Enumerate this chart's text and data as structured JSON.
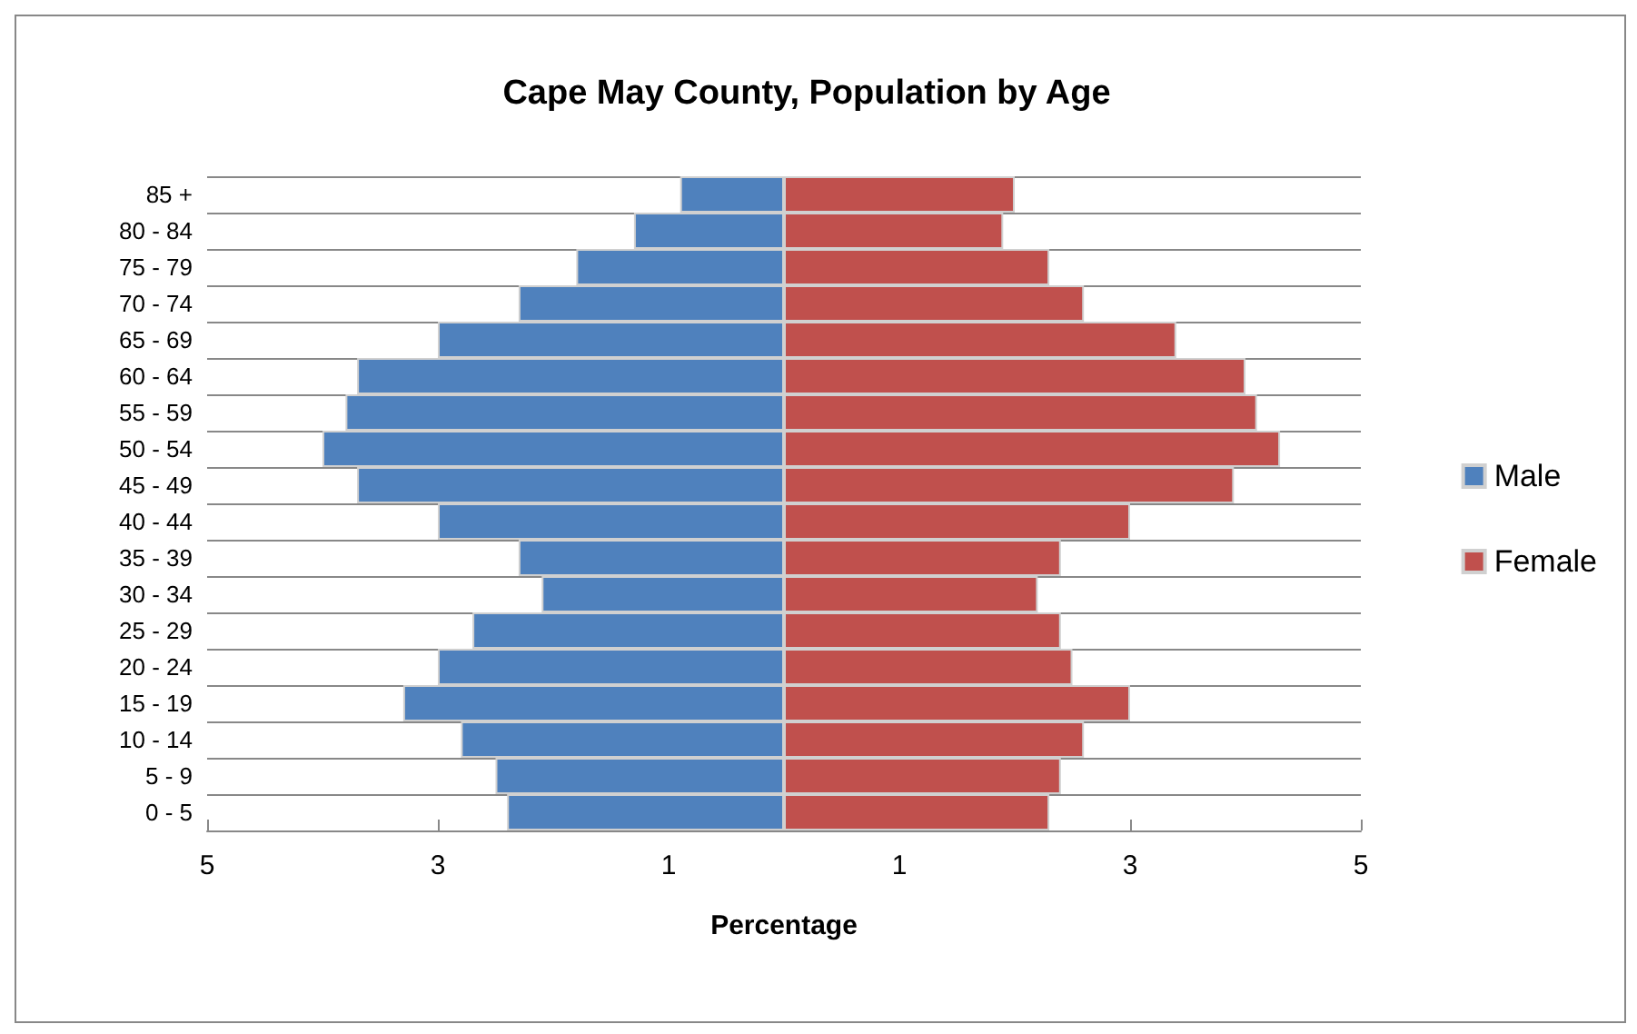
{
  "chart_data": {
    "type": "bar",
    "orientation": "horizontal",
    "stacked": true,
    "title": "Cape May County, Population by Age",
    "xlabel": "Percentage",
    "categories": [
      "85 +",
      "80 - 84",
      "75 - 79",
      "70 - 74",
      "65 - 69",
      "60 - 64",
      "55 - 59",
      "50 - 54",
      "45 - 49",
      "40 - 44",
      "35 - 39",
      "30 - 34",
      "25 - 29",
      "20 - 24",
      "15 - 19",
      "10 - 14",
      "5 - 9",
      "0 - 5"
    ],
    "series": [
      {
        "name": "Male",
        "color": "#4f81bd",
        "values": [
          -0.9,
          -1.3,
          -1.8,
          -2.3,
          -3.0,
          -3.7,
          -3.8,
          -4.0,
          -3.7,
          -3.0,
          -2.3,
          -2.1,
          -2.7,
          -3.0,
          -3.3,
          -2.8,
          -2.5,
          -2.4
        ]
      },
      {
        "name": "Female",
        "color": "#c0504d",
        "values": [
          2.0,
          1.9,
          2.3,
          2.6,
          3.4,
          4.0,
          4.1,
          4.3,
          3.9,
          3.0,
          2.4,
          2.2,
          2.4,
          2.5,
          3.0,
          2.6,
          2.4,
          2.3
        ]
      }
    ],
    "xlim": [
      -5,
      5
    ],
    "xticks": [
      {
        "value": -5,
        "label": "5"
      },
      {
        "value": -3,
        "label": "3"
      },
      {
        "value": -1,
        "label": "1"
      },
      {
        "value": 1,
        "label": "1"
      },
      {
        "value": 3,
        "label": "3"
      },
      {
        "value": 5,
        "label": "5"
      }
    ],
    "grid": "y",
    "legend": "right"
  }
}
